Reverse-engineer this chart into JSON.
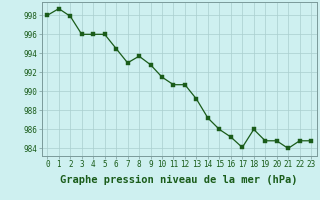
{
  "x": [
    0,
    1,
    2,
    3,
    4,
    5,
    6,
    7,
    8,
    9,
    10,
    11,
    12,
    13,
    14,
    15,
    16,
    17,
    18,
    19,
    20,
    21,
    22,
    23
  ],
  "y": [
    998.0,
    998.7,
    997.9,
    996.0,
    996.0,
    996.0,
    994.5,
    993.0,
    993.7,
    992.8,
    991.5,
    990.7,
    990.7,
    989.2,
    987.2,
    986.0,
    985.2,
    984.1,
    986.0,
    984.8,
    984.8,
    984.0,
    984.8,
    984.8
  ],
  "line_color": "#1a5c1a",
  "marker_color": "#1a5c1a",
  "bg_color": "#cef0f0",
  "grid_color": "#aacece",
  "xlabel": "Graphe pression niveau de la mer (hPa)",
  "ylim": [
    983.2,
    999.4
  ],
  "xlim": [
    -0.5,
    23.5
  ],
  "yticks": [
    984,
    986,
    988,
    990,
    992,
    994,
    996,
    998
  ],
  "xticks": [
    0,
    1,
    2,
    3,
    4,
    5,
    6,
    7,
    8,
    9,
    10,
    11,
    12,
    13,
    14,
    15,
    16,
    17,
    18,
    19,
    20,
    21,
    22,
    23
  ],
  "tick_fontsize": 5.5,
  "xlabel_fontsize": 7.5,
  "tick_color": "#1a5c1a",
  "border_color": "#7a9a9a",
  "linewidth": 0.9,
  "markersize": 2.2
}
